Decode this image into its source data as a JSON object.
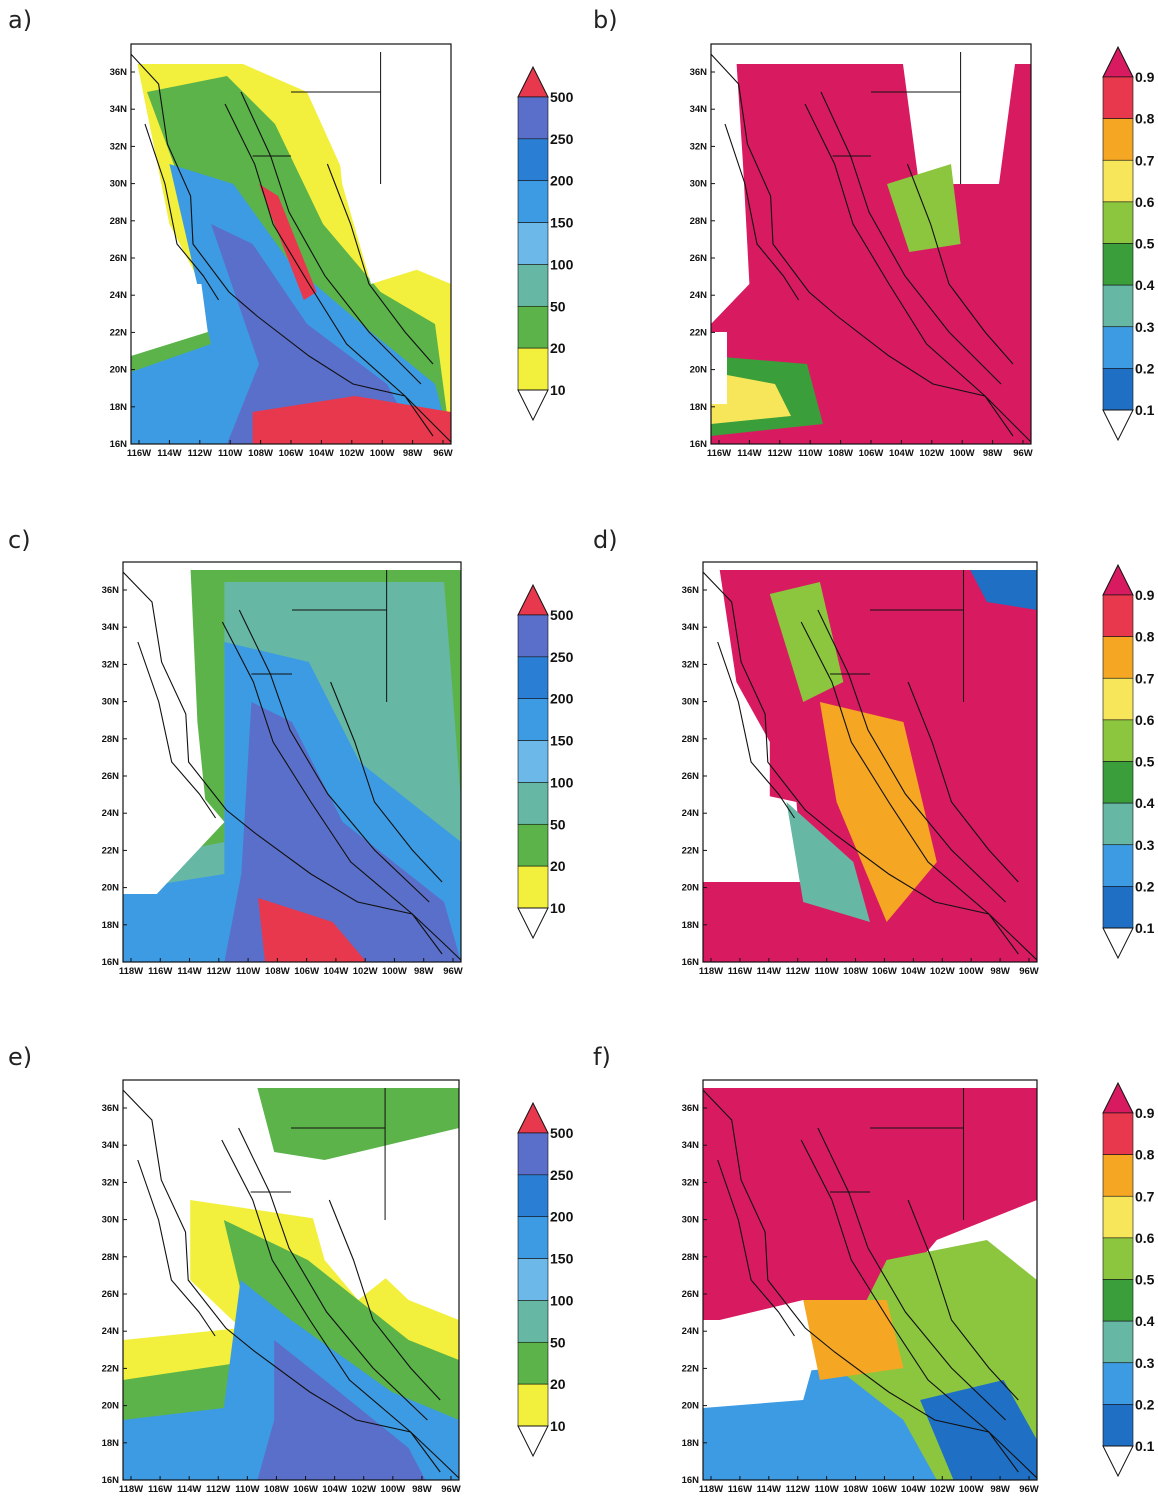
{
  "panels": [
    {
      "id": "a",
      "label": "a)",
      "kind": "precip",
      "lon_ticks": [
        "116W",
        "114W",
        "112W",
        "110W",
        "108W",
        "106W",
        "104W",
        "102W",
        "100W",
        "98W",
        "96W"
      ]
    },
    {
      "id": "b",
      "label": "b)",
      "kind": "frac",
      "lon_ticks": [
        "116W",
        "114W",
        "112W",
        "110W",
        "108W",
        "106W",
        "104W",
        "102W",
        "100W",
        "98W",
        "96W"
      ]
    },
    {
      "id": "c",
      "label": "c)",
      "kind": "precip",
      "lon_ticks": [
        "118W",
        "116W",
        "114W",
        "112W",
        "110W",
        "108W",
        "106W",
        "104W",
        "102W",
        "100W",
        "98W",
        "96W"
      ]
    },
    {
      "id": "d",
      "label": "d)",
      "kind": "frac",
      "lon_ticks": [
        "118W",
        "116W",
        "114W",
        "112W",
        "110W",
        "108W",
        "106W",
        "104W",
        "102W",
        "100W",
        "98W",
        "96W"
      ]
    },
    {
      "id": "e",
      "label": "e)",
      "kind": "precip",
      "lon_ticks": [
        "118W",
        "116W",
        "114W",
        "112W",
        "110W",
        "108W",
        "106W",
        "104W",
        "102W",
        "100W",
        "98W",
        "96W"
      ]
    },
    {
      "id": "f",
      "label": "f)",
      "kind": "frac",
      "lon_ticks": [
        "118W",
        "116W",
        "114W",
        "112W",
        "110W",
        "108W",
        "106W",
        "104W",
        "102W",
        "100W",
        "98W",
        "96W"
      ]
    }
  ],
  "lat_ticks": [
    "36N",
    "34N",
    "32N",
    "30N",
    "28N",
    "26N",
    "24N",
    "22N",
    "20N",
    "18N",
    "16N"
  ],
  "colorbars": {
    "precip": {
      "labels": [
        "500",
        "250",
        "200",
        "150",
        "100",
        "50",
        "20",
        "10"
      ],
      "colors": [
        "#e8384d",
        "#5a6fc9",
        "#2a7fd4",
        "#3d9be3",
        "#6cb8e8",
        "#66b8a5",
        "#5bb34a",
        "#f2f03c",
        "#ffffff"
      ]
    },
    "frac": {
      "labels": [
        "0.9",
        "0.8",
        "0.7",
        "0.6",
        "0.5",
        "0.4",
        "0.3",
        "0.2",
        "0.1"
      ],
      "colors": [
        "#d81b60",
        "#e8384d",
        "#f5a623",
        "#f7e65a",
        "#8cc63f",
        "#3a9e3a",
        "#66b8a5",
        "#3d9be3",
        "#1f6fc4",
        "#ffffff"
      ]
    }
  }
}
